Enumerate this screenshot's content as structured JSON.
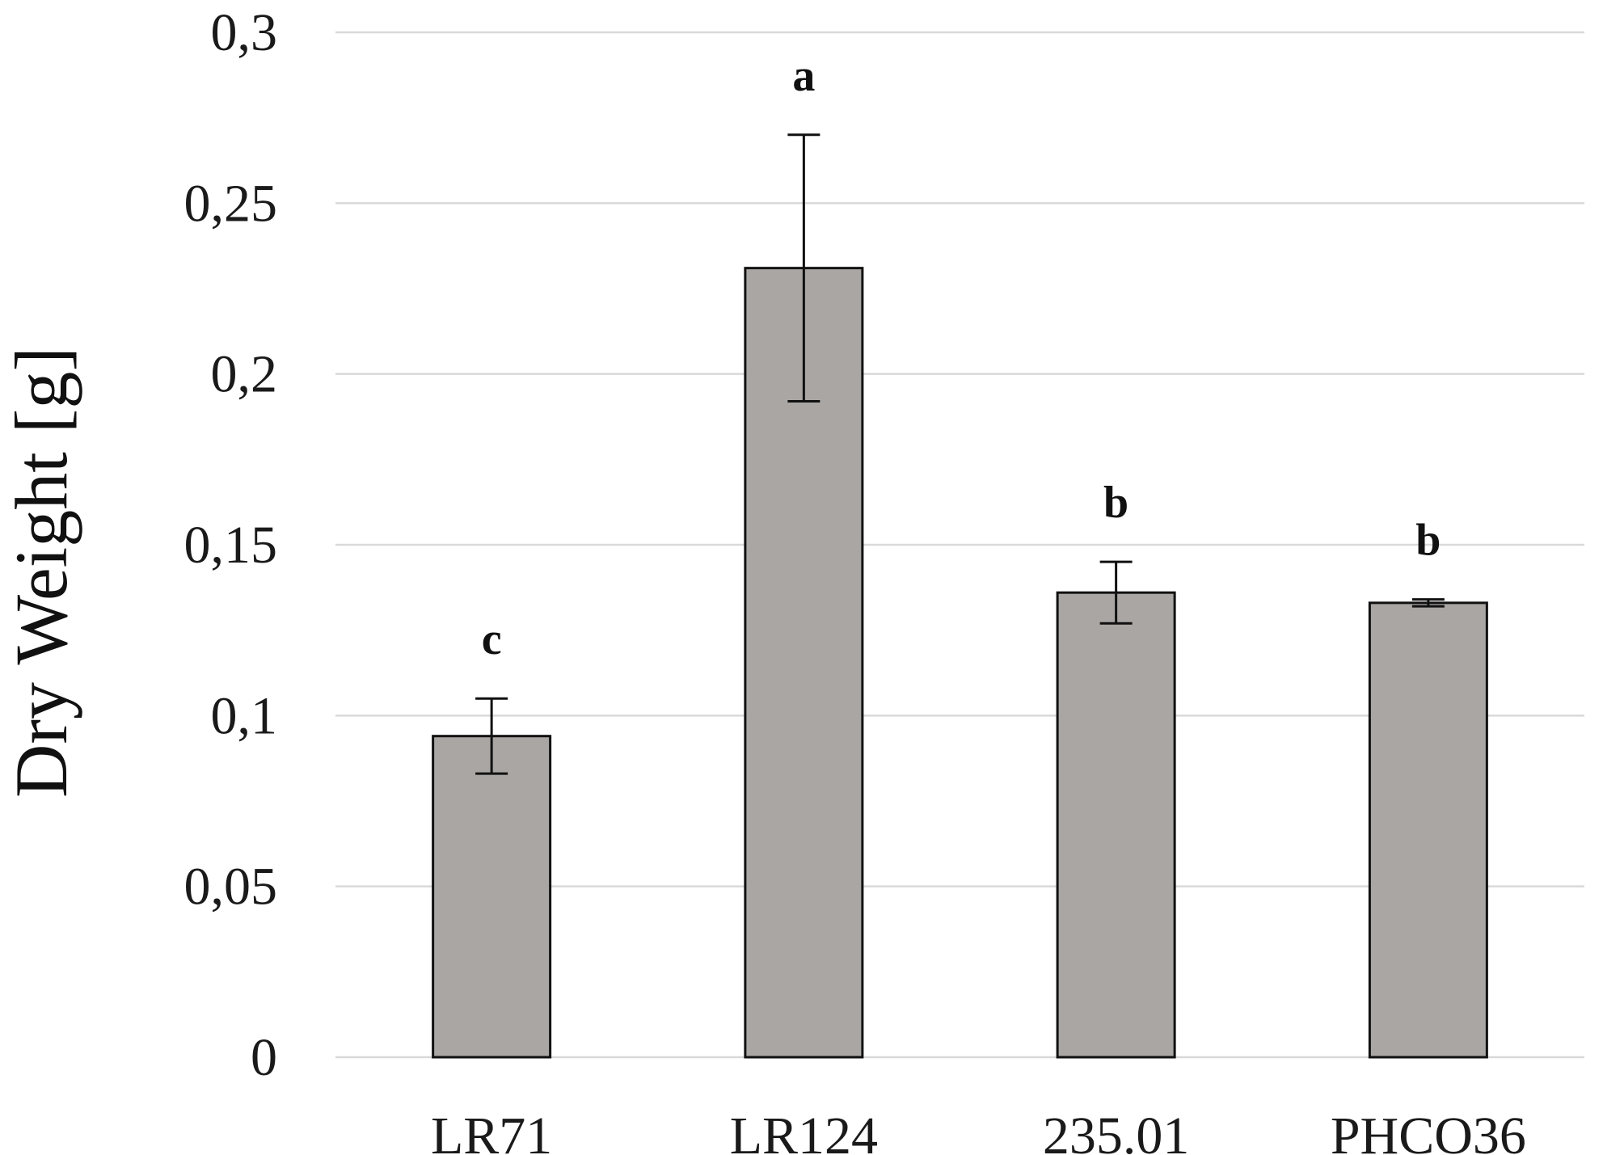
{
  "chart_data": {
    "type": "bar",
    "ylabel": "Dry Weight [g]",
    "xlabel": "",
    "ylim": [
      0,
      0.3
    ],
    "yticks": [
      0,
      0.05,
      0.1,
      0.15,
      0.2,
      0.25,
      0.3
    ],
    "ytick_labels": [
      "0",
      "0,05",
      "0,1",
      "0,15",
      "0,2",
      "0,25",
      "0,3"
    ],
    "grid": true,
    "legend": "none",
    "categories": [
      "LR71",
      "LR124",
      "235.01",
      "PHCO36"
    ],
    "values": [
      0.094,
      0.231,
      0.136,
      0.133
    ],
    "errors": [
      0.011,
      0.039,
      0.009,
      0.001
    ],
    "significance": [
      "c",
      "a",
      "b",
      "b"
    ],
    "bar_color": "#aaa6a4"
  }
}
